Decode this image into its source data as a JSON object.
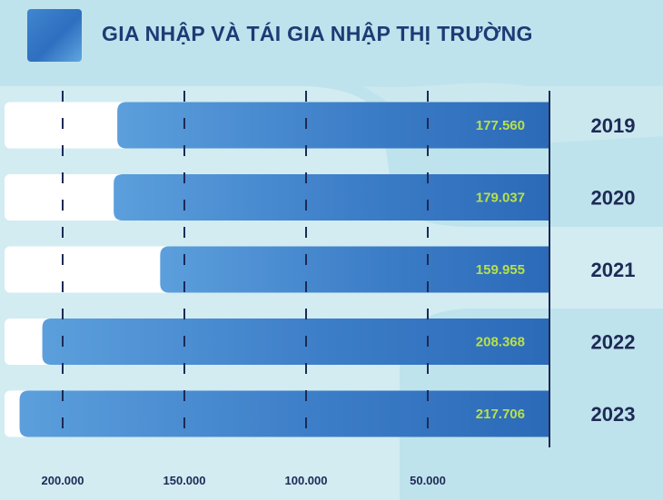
{
  "title": "GIA NHẬP VÀ TÁI GIA NHẬP THỊ TRƯỜNG",
  "colors": {
    "background": "#bfe3ec",
    "bar_dark": "#2b6ab8",
    "bar_light": "#5c9fdc",
    "track": "#ffffff",
    "value_text": "#b8e04a",
    "label_text": "#1d2a55",
    "title_text": "#1f3a75"
  },
  "chart_data": {
    "type": "bar",
    "orientation": "horizontal",
    "direction": "right-to-left",
    "title": "GIA NHẬP VÀ TÁI GIA NHẬP THỊ TRƯỜNG",
    "categories": [
      "2019",
      "2020",
      "2021",
      "2022",
      "2023"
    ],
    "values": [
      177560,
      179037,
      159955,
      208368,
      217706
    ],
    "value_labels": [
      "177.560",
      "179.037",
      "159.955",
      "208.368",
      "217.706"
    ],
    "ticks": [
      200000,
      150000,
      100000,
      50000
    ],
    "tick_labels": [
      "200.000",
      "150.000",
      "100.000",
      "50.000"
    ],
    "xlim": [
      0,
      220000
    ],
    "grid": "dashed vertical",
    "xlabel": "",
    "ylabel": ""
  }
}
